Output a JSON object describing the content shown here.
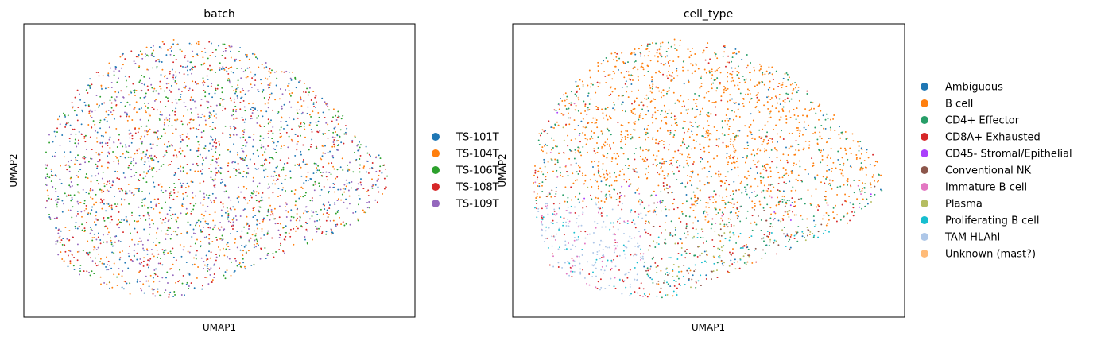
{
  "chart_data": [
    {
      "type": "scatter",
      "title": "batch",
      "xlabel": "UMAP1",
      "ylabel": "UMAP2",
      "xticks": [],
      "yticks": [],
      "grid": false,
      "legend_position": "right",
      "categories": [
        {
          "name": "TS-101T",
          "color": "#1f77b4"
        },
        {
          "name": "TS-104T",
          "color": "#ff7f0e"
        },
        {
          "name": "TS-106T",
          "color": "#2ca02c"
        },
        {
          "name": "TS-108T",
          "color": "#d62728"
        },
        {
          "name": "TS-109T",
          "color": "#9467bd"
        }
      ]
    },
    {
      "type": "scatter",
      "title": "cell_type",
      "xlabel": "UMAP1",
      "ylabel": "UMAP2",
      "xticks": [],
      "yticks": [],
      "grid": false,
      "legend_position": "right",
      "categories": [
        {
          "name": "Ambiguous",
          "color": "#1f77b4"
        },
        {
          "name": "B cell",
          "color": "#ff7f0e"
        },
        {
          "name": "CD4+ Effector",
          "color": "#279e68"
        },
        {
          "name": "CD8A+ Exhausted",
          "color": "#d62728"
        },
        {
          "name": "CD45- Stromal/Epithelial",
          "color": "#aa40fc"
        },
        {
          "name": "Conventional NK",
          "color": "#8c564b"
        },
        {
          "name": "Immature B cell",
          "color": "#e377c2"
        },
        {
          "name": "Plasma",
          "color": "#b5bd61"
        },
        {
          "name": "Proliferating B cell",
          "color": "#17becf"
        },
        {
          "name": "TAM HLAhi",
          "color": "#aec7e8"
        },
        {
          "name": "Unknown (mast?)",
          "color": "#ffbb78"
        }
      ]
    }
  ]
}
